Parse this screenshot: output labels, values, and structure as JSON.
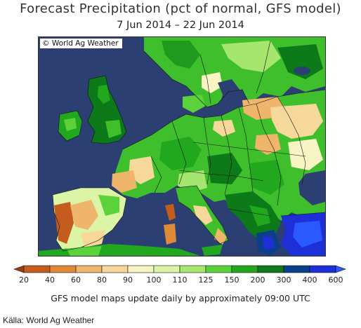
{
  "title": "Forecast Precipitation (pct of normal, GFS model)",
  "subtitle": "7 Jun 2014 – 22 Jun 2014",
  "map": {
    "credit": "© World Ag Weather",
    "sea_color": "#2b3f72",
    "country_names": []
  },
  "legend": {
    "ticks": [
      "20",
      "40",
      "60",
      "80",
      "90",
      "100",
      "110",
      "125",
      "150",
      "200",
      "300",
      "400",
      "600"
    ],
    "colors": [
      "#9c3c12",
      "#c45c1e",
      "#df8a38",
      "#efb56a",
      "#f6d89a",
      "#f8f4c4",
      "#dcf4a6",
      "#a6e670",
      "#5cd23a",
      "#22a81e",
      "#0c7a18",
      "#0b3f8a",
      "#1f2fd8",
      "#2a59ff"
    ],
    "update_note": "GFS model maps update daily by approximately 09:00 UTC"
  },
  "source": "Källa: World Ag Weather"
}
